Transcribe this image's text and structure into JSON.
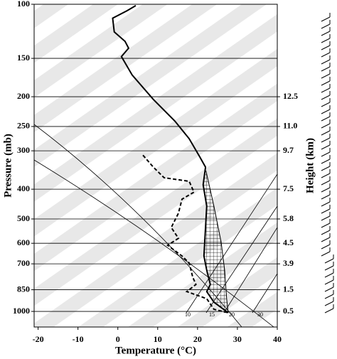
{
  "chart_data": {
    "type": "skewt",
    "x_label": "Temperature (°C)",
    "y_label": "Pressure (mb)",
    "y2_label": "Height (km)",
    "xlim": [
      -21,
      40
    ],
    "xticks": [
      -20,
      -10,
      0,
      10,
      20,
      30,
      40
    ],
    "ylim": [
      100,
      1124
    ],
    "log_y": true,
    "grid": true,
    "yticks": [
      100,
      150,
      200,
      250,
      300,
      400,
      500,
      600,
      700,
      850,
      1000
    ],
    "height_ticks": [
      {
        "value": 200,
        "label": "12.5"
      },
      {
        "value": 250,
        "label": "11.0"
      },
      {
        "value": 300,
        "label": "9.7"
      },
      {
        "value": 400,
        "label": "7.5"
      },
      {
        "value": 500,
        "label": "5.8"
      },
      {
        "value": 600,
        "label": "4.5"
      },
      {
        "value": 700,
        "label": "3.9"
      },
      {
        "value": 850,
        "label": "1.5"
      },
      {
        "value": 1000,
        "label": "0.5"
      }
    ],
    "mixing_ratio_labels": [
      10,
      15,
      20,
      30
    ],
    "series": [
      {
        "name": "temperature",
        "color": "#000000",
        "style": "solid",
        "y": [
          101,
          105,
          111,
          123,
          132,
          139,
          148,
          170,
          204,
          240,
          274,
          313,
          339,
          387,
          454,
          533,
          660,
          734,
          817,
          862,
          933,
          1010
        ],
        "x": [
          4.5,
          2.3,
          -1.3,
          -0.9,
          1.8,
          2.7,
          0.9,
          3.6,
          8.9,
          14.3,
          17.9,
          20.5,
          22.0,
          21.4,
          22.3,
          22.0,
          21.6,
          22.3,
          23.2,
          22.3,
          24.1,
          27.7
        ]
      },
      {
        "name": "dewpoint",
        "color": "#000000",
        "style": "dashed",
        "y": [
          310,
          339,
          367,
          377,
          409,
          431,
          479,
          533,
          578,
          609,
          660,
          696,
          774,
          817,
          862,
          909,
          984,
          1010
        ],
        "x": [
          6.3,
          8.9,
          11.6,
          17.9,
          19.1,
          16.1,
          15.2,
          13.4,
          15.2,
          12.5,
          16.1,
          17.9,
          18.8,
          19.6,
          17.3,
          22.3,
          24.1,
          27.7
        ]
      },
      {
        "name": "parcel",
        "color": "#000000",
        "style": "thin",
        "y": [
          348,
          454,
          593,
          734,
          909,
          1010
        ],
        "x": [
          22.1,
          24.1,
          25.9,
          26.8,
          27.3,
          27.7
        ]
      }
    ]
  }
}
